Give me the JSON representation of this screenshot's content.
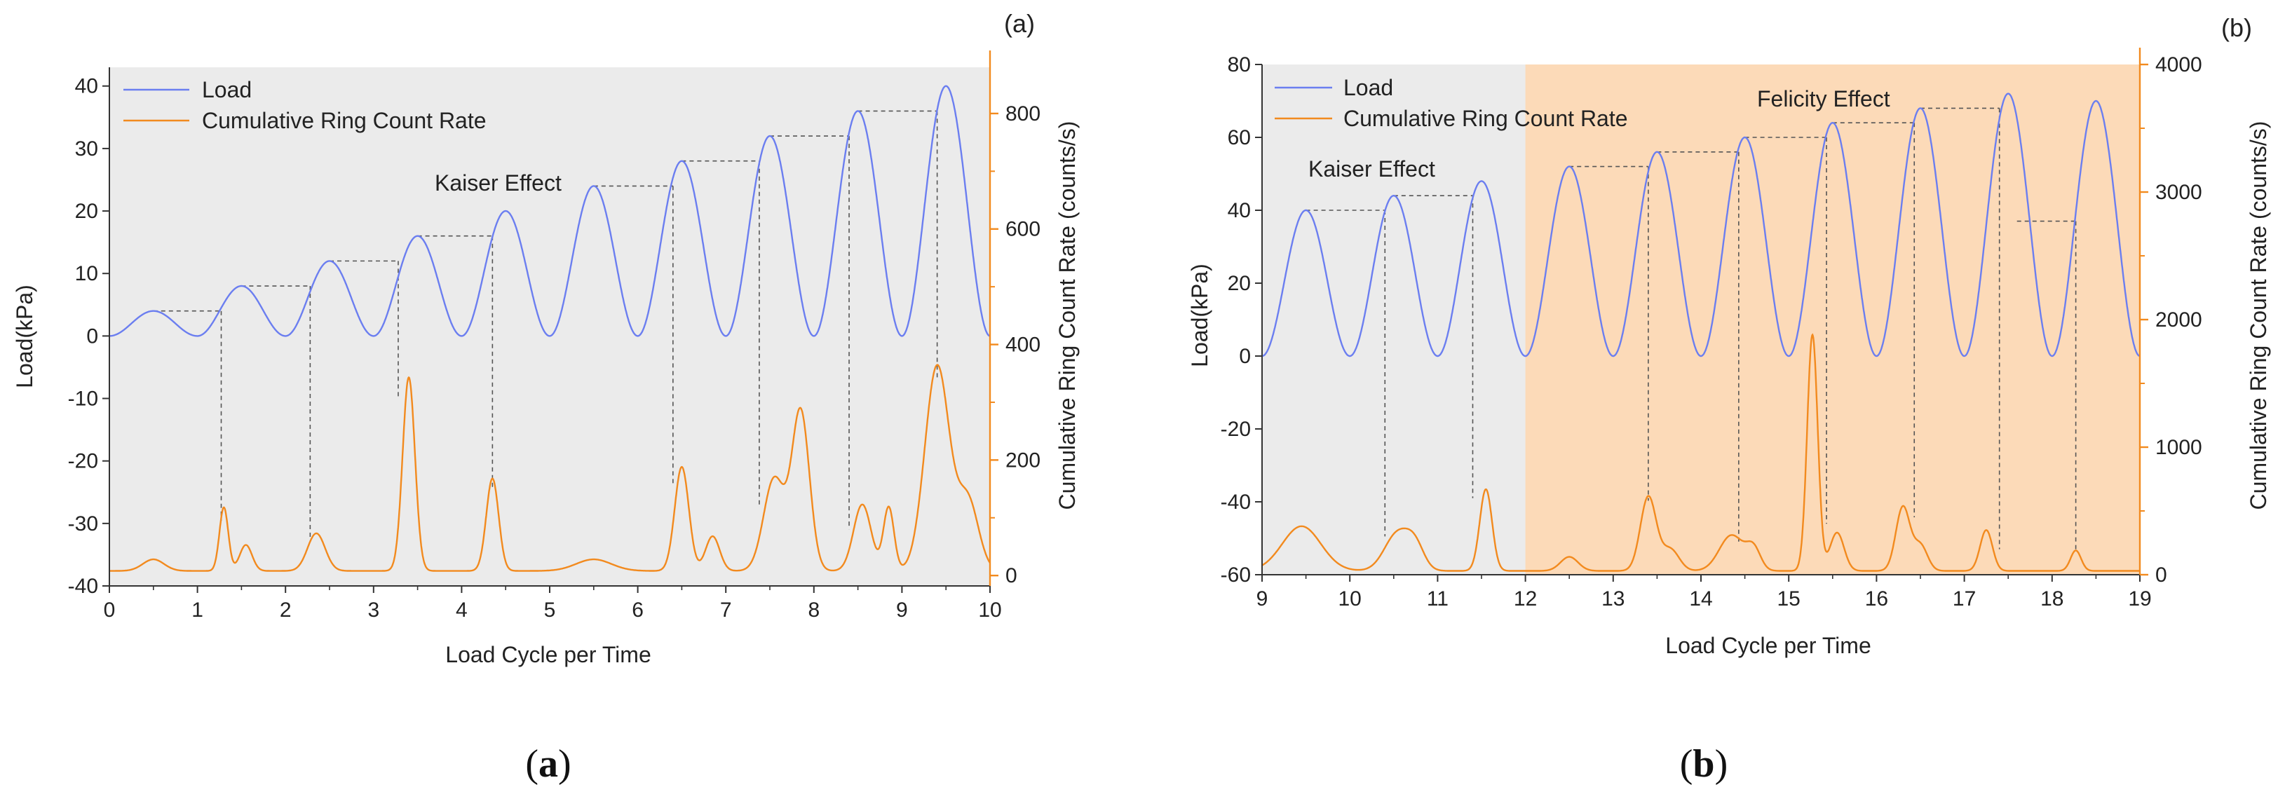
{
  "chart_data": [
    {
      "panel_label": "(a)",
      "caption": "(a)",
      "type": "line",
      "xlabel": "Load Cycle per Time",
      "ylabel": "Load(kPa)",
      "y2label": "Cumulative Ring Count Rate (counts/s)",
      "xlim": [
        0,
        10
      ],
      "ylim": [
        -40,
        43
      ],
      "y2lim": [
        -18,
        880
      ],
      "xticks": [
        "0",
        "1",
        "2",
        "3",
        "4",
        "5",
        "6",
        "7",
        "8",
        "9",
        "10"
      ],
      "yticks": [
        "-40",
        "-30",
        "-20",
        "-10",
        "0",
        "10",
        "20",
        "30",
        "40"
      ],
      "y2ticks": [
        "0",
        "200",
        "400",
        "600",
        "800"
      ],
      "legend": [
        "Load",
        "Cumulative Ring Count Rate"
      ],
      "annotation": "Kaiser Effect",
      "colors": {
        "load": "#6b7ef0",
        "count": "#f28a1e",
        "bg": "#ebebeb",
        "guide": "#555555"
      },
      "load_peaks": [
        4,
        8,
        12,
        16,
        20,
        24,
        28,
        32,
        36,
        40
      ],
      "count_series": {
        "baseline": 8,
        "peaks": [
          {
            "x": 0.5,
            "y": 20,
            "w": 0.12
          },
          {
            "x": 1.3,
            "y": 110,
            "w": 0.05
          },
          {
            "x": 1.55,
            "y": 45,
            "w": 0.07
          },
          {
            "x": 2.35,
            "y": 65,
            "w": 0.1
          },
          {
            "x": 3.4,
            "y": 335,
            "w": 0.07
          },
          {
            "x": 4.35,
            "y": 160,
            "w": 0.07
          },
          {
            "x": 5.5,
            "y": 20,
            "w": 0.2
          },
          {
            "x": 6.5,
            "y": 180,
            "w": 0.08
          },
          {
            "x": 6.85,
            "y": 60,
            "w": 0.08
          },
          {
            "x": 7.55,
            "y": 160,
            "w": 0.12
          },
          {
            "x": 7.85,
            "y": 275,
            "w": 0.1
          },
          {
            "x": 8.55,
            "y": 115,
            "w": 0.1
          },
          {
            "x": 8.85,
            "y": 110,
            "w": 0.06
          },
          {
            "x": 9.4,
            "y": 355,
            "w": 0.14
          },
          {
            "x": 9.75,
            "y": 120,
            "w": 0.12
          }
        ]
      },
      "guides": [
        {
          "x1": 0.5,
          "x2": 1.27,
          "load": 4,
          "count": 95
        },
        {
          "x1": 1.5,
          "x2": 2.28,
          "load": 8,
          "count": 60
        },
        {
          "x1": 2.5,
          "x2": 3.28,
          "load": 12,
          "count": 310
        },
        {
          "x1": 3.5,
          "x2": 4.35,
          "load": 16,
          "count": 150
        },
        {
          "x1": 5.5,
          "x2": 6.4,
          "load": 24,
          "count": 160
        },
        {
          "x1": 6.5,
          "x2": 7.38,
          "load": 28,
          "count": 120
        },
        {
          "x1": 7.5,
          "x2": 8.4,
          "load": 32,
          "count": 80
        },
        {
          "x1": 8.5,
          "x2": 9.4,
          "load": 36,
          "count": 340
        }
      ]
    },
    {
      "panel_label": "(b)",
      "caption": "(b)",
      "type": "line",
      "xlabel": "Load Cycle per Time",
      "ylabel": "Load(kPa)",
      "y2label": "Cumulative Ring Count Rate (counts/s)",
      "xlim": [
        9,
        19
      ],
      "ylim": [
        -60,
        80
      ],
      "y2lim": [
        0,
        4000
      ],
      "xticks": [
        "9",
        "10",
        "11",
        "12",
        "13",
        "14",
        "15",
        "16",
        "17",
        "18",
        "19"
      ],
      "yticks": [
        "-60",
        "-40",
        "-20",
        "0",
        "20",
        "40",
        "60",
        "80"
      ],
      "y2ticks": [
        "0",
        "1000",
        "2000",
        "3000",
        "4000"
      ],
      "legend": [
        "Load",
        "Cumulative Ring Count Rate"
      ],
      "annotations": [
        "Kaiser Effect",
        "Felicity Effect"
      ],
      "colors": {
        "load": "#6b7ef0",
        "count": "#f28a1e",
        "bg": "#ebebeb",
        "felicity_bg": "#fcdab8",
        "guide": "#555555"
      },
      "felicity_start": 12,
      "load_peaks": [
        40,
        44,
        48,
        52,
        56,
        60,
        64,
        68,
        72,
        70
      ],
      "count_series": {
        "baseline": 30,
        "peaks": [
          {
            "x": 9.45,
            "y": 350,
            "w": 0.22
          },
          {
            "x": 10.55,
            "y": 300,
            "w": 0.15
          },
          {
            "x": 10.75,
            "y": 150,
            "w": 0.1
          },
          {
            "x": 11.55,
            "y": 640,
            "w": 0.07
          },
          {
            "x": 12.5,
            "y": 110,
            "w": 0.1
          },
          {
            "x": 13.4,
            "y": 580,
            "w": 0.09
          },
          {
            "x": 13.65,
            "y": 170,
            "w": 0.1
          },
          {
            "x": 14.35,
            "y": 280,
            "w": 0.14
          },
          {
            "x": 14.6,
            "y": 160,
            "w": 0.08
          },
          {
            "x": 15.27,
            "y": 1850,
            "w": 0.06
          },
          {
            "x": 15.55,
            "y": 300,
            "w": 0.08
          },
          {
            "x": 16.3,
            "y": 500,
            "w": 0.08
          },
          {
            "x": 16.5,
            "y": 200,
            "w": 0.08
          },
          {
            "x": 17.25,
            "y": 320,
            "w": 0.07
          },
          {
            "x": 18.27,
            "y": 160,
            "w": 0.06
          }
        ]
      },
      "guides": [
        {
          "x1": 9.5,
          "x2": 10.4,
          "load": 40,
          "count": 300
        },
        {
          "x1": 10.5,
          "x2": 11.4,
          "load": 44,
          "count": 600
        },
        {
          "x1": 12.5,
          "x2": 13.4,
          "load": 52,
          "count": 580
        },
        {
          "x1": 13.5,
          "x2": 14.43,
          "load": 56,
          "count": 250
        },
        {
          "x1": 14.5,
          "x2": 15.43,
          "load": 60,
          "count": 400
        },
        {
          "x1": 15.5,
          "x2": 16.43,
          "load": 64,
          "count": 450
        },
        {
          "x1": 16.5,
          "x2": 17.4,
          "load": 68,
          "count": 200
        },
        {
          "x1": 17.6,
          "x2": 18.27,
          "load": 37,
          "count": 180
        }
      ]
    }
  ]
}
